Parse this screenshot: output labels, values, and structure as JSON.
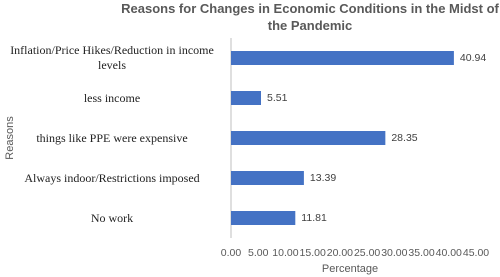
{
  "chart_data": {
    "type": "bar",
    "orientation": "horizontal",
    "title": "Reasons for Changes in Economic Conditions in the Midst of the Pandemic",
    "categories": [
      "Inflation/Price Hikes/Reduction in income levels",
      "less income",
      "things like PPE were expensive",
      "Always indoor/Restrictions imposed",
      "No work"
    ],
    "values": [
      40.94,
      5.51,
      28.35,
      13.39,
      11.81
    ],
    "color": "#4472c4",
    "xlabel": "Percentage",
    "ylabel": "Reasons",
    "xlim": [
      0,
      45
    ],
    "xticks": [
      {
        "value": 0,
        "label": "0.00"
      },
      {
        "value": 5,
        "label": "5.00"
      },
      {
        "value": 10,
        "label": "10.00"
      },
      {
        "value": 15,
        "label": "15.00"
      },
      {
        "value": 20,
        "label": "20.00"
      },
      {
        "value": 25,
        "label": "25.00"
      },
      {
        "value": 30,
        "label": "30.00"
      },
      {
        "value": 35,
        "label": "35.00"
      },
      {
        "value": 40,
        "label": "40.00"
      },
      {
        "value": 45,
        "label": "45.00"
      }
    ],
    "grid": false
  }
}
